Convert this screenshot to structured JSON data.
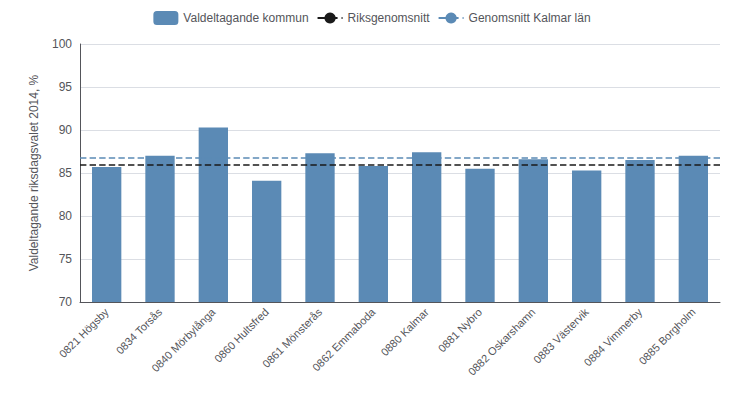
{
  "chart_data": {
    "type": "bar",
    "ylabel": "Valdeltagande riksdagsvalet 2014, %",
    "categories": [
      "0821 Högsby",
      "0834 Torsås",
      "0840 Mörbylånga",
      "0860 Hultsfred",
      "0861 Mönsterås",
      "0862 Emmaboda",
      "0880 Kalmar",
      "0881 Nybro",
      "0882 Oskarshamn",
      "0883 Västervik",
      "0884 Vimmerby",
      "0885 Borgholm"
    ],
    "series": [
      {
        "name": "Valdeltagande kommun",
        "color": "#5b8ab5",
        "values": [
          85.7,
          87.0,
          90.3,
          84.1,
          87.3,
          85.8,
          87.4,
          85.5,
          86.6,
          85.3,
          86.5,
          87.0
        ]
      }
    ],
    "reference_lines": [
      {
        "name": "Riksgenomsnitt",
        "value": 86.0,
        "color": "#1a1a1a",
        "line_style": "dashed"
      },
      {
        "name": "Genomsnitt Kalmar län",
        "value": 86.8,
        "color": "#5b8ab5",
        "line_style": "dashed"
      }
    ],
    "ylim": [
      70,
      100
    ],
    "yticks": [
      70,
      75,
      80,
      85,
      90,
      95,
      100
    ],
    "grid": true,
    "legend": "top"
  }
}
